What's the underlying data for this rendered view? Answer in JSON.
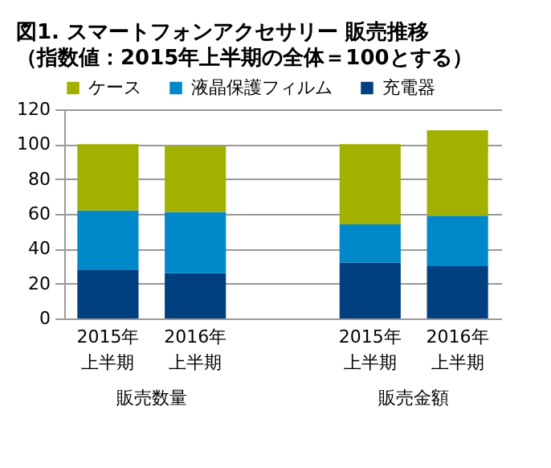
{
  "chart_data": {
    "type": "bar",
    "title": "図1. スマートフォンアクセサリー 販売推移",
    "subtitle": "（指数値：2015年上半期の全体＝100とする）",
    "categories": [
      "2015年上半期",
      "2016年上半期",
      null,
      "2015年上半期",
      "2016年上半期"
    ],
    "annotations": [
      "販売数量",
      "販売金額"
    ],
    "stacked": true,
    "series": [
      {
        "name": "充電器",
        "color": "#003f80",
        "values": [
          28,
          26,
          null,
          32,
          30
        ]
      },
      {
        "name": "液晶保護フィルム",
        "color": "#0088c8",
        "values": [
          34,
          35,
          null,
          22,
          29
        ]
      },
      {
        "name": "ケース",
        "color": "#a2b000",
        "values": [
          38,
          38,
          null,
          46,
          49
        ]
      }
    ],
    "ylim": [
      0,
      120
    ],
    "yticks": [
      0,
      20,
      40,
      60,
      80,
      100,
      120
    ],
    "grid": "y",
    "legend": "top"
  }
}
